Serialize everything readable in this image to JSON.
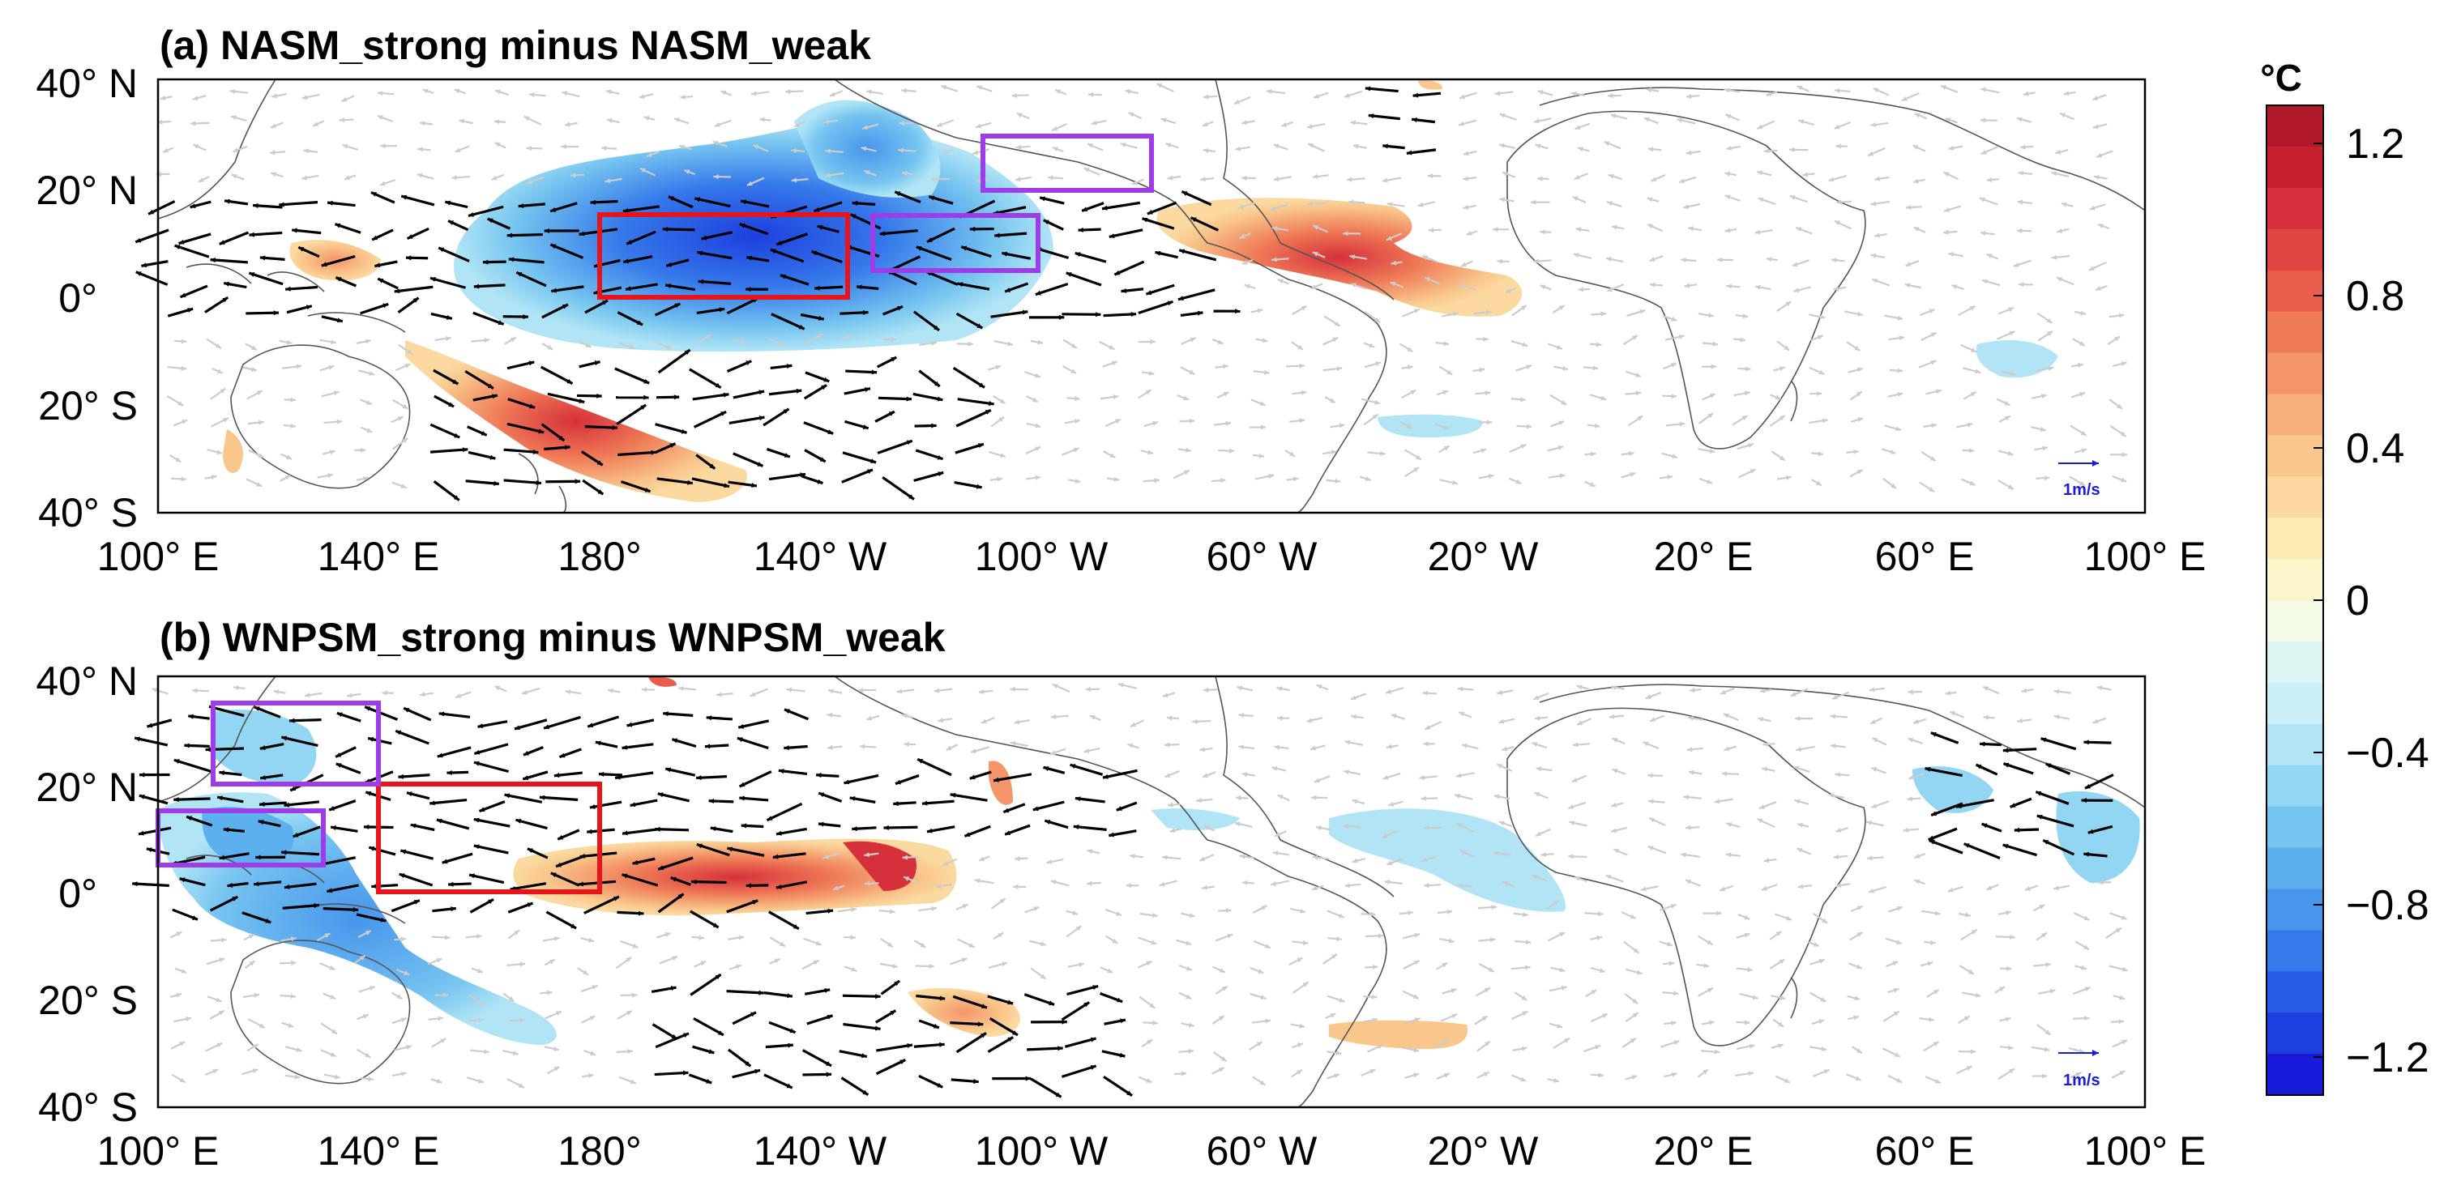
{
  "figure": {
    "units": "°C",
    "colorbar": {
      "ticks": [
        "1.2",
        "0.8",
        "0.4",
        "0",
        "−0.4",
        "−0.8",
        "−1.2"
      ],
      "values": [
        1.2,
        0.8,
        0.4,
        0,
        -0.4,
        -0.8,
        -1.2
      ],
      "range": [
        -1.3,
        1.3
      ],
      "colors_top_to_bottom": [
        "#b2182b",
        "#c6202e",
        "#d6303a",
        "#e0453f",
        "#e95d4a",
        "#ef7a57",
        "#f4956a",
        "#f7ae7a",
        "#f9c68c",
        "#fbd9a0",
        "#fce9b4",
        "#fdf5cc",
        "#f3fae6",
        "#e0f6f4",
        "#cdeff7",
        "#b1e5f6",
        "#93d6f3",
        "#76c4f0",
        "#5cb0ee",
        "#4795ec",
        "#3679ea",
        "#285ce6",
        "#1d3fde",
        "#1a1adb"
      ]
    },
    "x_ticks": [
      "100° E",
      "140° E",
      "180°",
      "140° W",
      "100° W",
      "60° W",
      "20° W",
      "20° E",
      "60° E",
      "100° E"
    ],
    "y_ticks": [
      "40° N",
      "20° N",
      "0°",
      "20° S",
      "40° S"
    ],
    "panels": [
      {
        "title": "(a) NASM_strong minus NASM_weak",
        "reference_vector": "1m/s",
        "boxes": [
          {
            "label": "red",
            "lon": [
              180,
              225
            ],
            "lat": [
              0,
              15
            ],
            "color": "#e8141c"
          },
          {
            "label": "purple",
            "lon": [
              235,
              260
            ],
            "lat": [
              5,
              15
            ],
            "color": "#9d3ce8"
          },
          {
            "label": "purple",
            "lon": [
              255,
              280
            ],
            "lat": [
              20,
              30
            ],
            "color": "#9d3ce8"
          }
        ]
      },
      {
        "title": "(b) WNPSM_strong minus WNPSM_weak",
        "reference_vector": "1m/s",
        "boxes": [
          {
            "label": "red",
            "lon": [
              140,
              180
            ],
            "lat": [
              0,
              20
            ],
            "color": "#e8141c"
          },
          {
            "label": "purple",
            "lon": [
              100,
              130
            ],
            "lat": [
              5,
              15
            ],
            "color": "#9d3ce8"
          },
          {
            "label": "purple",
            "lon": [
              110,
              140
            ],
            "lat": [
              20,
              35
            ],
            "color": "#9d3ce8"
          }
        ]
      }
    ]
  }
}
